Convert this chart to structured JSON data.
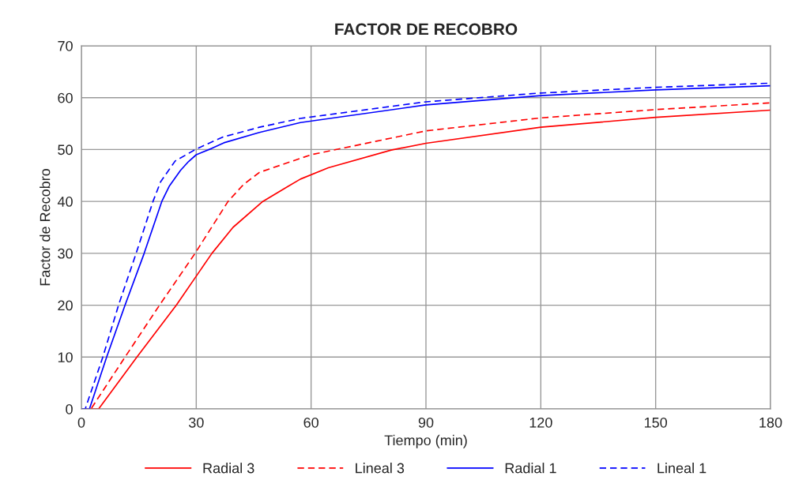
{
  "chart_data": {
    "type": "line",
    "title": "FACTOR DE RECOBRO",
    "xlabel": "Tiempo (min)",
    "ylabel": "Factor de Recobro",
    "xlim": [
      0,
      180
    ],
    "xticks": [
      0,
      30,
      60,
      90,
      120,
      150,
      180
    ],
    "ylim": [
      0,
      70
    ],
    "yticks": [
      0,
      10,
      20,
      30,
      40,
      50,
      60,
      70
    ],
    "grid": true,
    "legend": "bottom",
    "marker": "none",
    "series": [
      {
        "name": "Radial 3",
        "color": "#ff0000",
        "line_style": "solid",
        "x": [
          0,
          4.5,
          14.5,
          24.8,
          34.1,
          39.6,
          47.2,
          54,
          57.2,
          64.5,
          80.9,
          90,
          120,
          150,
          180
        ],
        "values": [
          0,
          0,
          10,
          20,
          30,
          35,
          39.9,
          42.9,
          44.3,
          46.5,
          49.9,
          51.2,
          54.3,
          56.2,
          57.6
        ]
      },
      {
        "name": "Lineal 3",
        "color": "#ff0000",
        "line_style": "dashed",
        "x": [
          0,
          2.5,
          11.4,
          20.4,
          29.7,
          38.3,
          42.4,
          46.5,
          60,
          90,
          120,
          150,
          180
        ],
        "values": [
          0,
          0,
          10,
          20,
          30,
          40,
          43.3,
          45.6,
          49,
          53.6,
          56.1,
          57.7,
          59.0
        ]
      },
      {
        "name": "Radial 1",
        "color": "#0000ff",
        "line_style": "solid",
        "x": [
          0,
          2.1,
          6.6,
          11.4,
          16.4,
          21,
          23,
          25.9,
          28,
          30,
          34,
          37.2,
          46.5,
          57.2,
          90,
          120,
          150,
          180
        ],
        "values": [
          0,
          0,
          10,
          20,
          30,
          40,
          43,
          46,
          47.7,
          49,
          50.2,
          51.3,
          53.3,
          55.2,
          58.6,
          60.4,
          61.5,
          62.3
        ]
      },
      {
        "name": "Lineal 1",
        "color": "#0000ff",
        "line_style": "dashed",
        "x": [
          0,
          1,
          5.6,
          9.7,
          14.3,
          18.7,
          20.7,
          24.5,
          30,
          36.9,
          46.5,
          57.2,
          90,
          120,
          150,
          180
        ],
        "values": [
          0,
          0,
          10,
          20,
          30,
          40,
          43.8,
          47.8,
          50.1,
          52.4,
          54.3,
          56,
          59.2,
          60.9,
          62.0,
          62.8
        ]
      }
    ]
  }
}
